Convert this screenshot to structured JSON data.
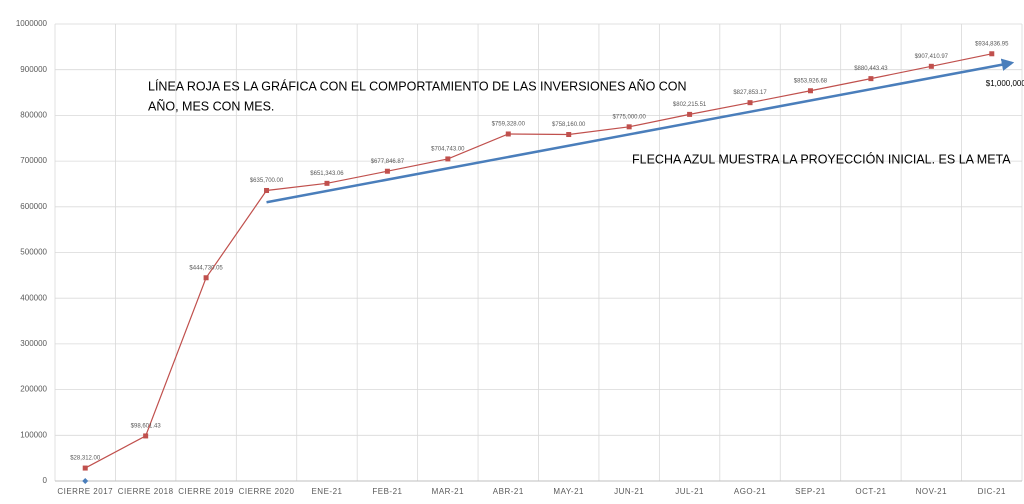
{
  "chart_data": {
    "type": "line",
    "categories": [
      "CIERRE 2017",
      "CIERRE 2018",
      "CIERRE 2019",
      "CIERRE 2020",
      "ENE-21",
      "FEB-21",
      "MAR-21",
      "ABR-21",
      "MAY-21",
      "JUN-21",
      "JUL-21",
      "AGO-21",
      "SEP-21",
      "OCT-21",
      "NOV-21",
      "DIC-21"
    ],
    "series": [
      {
        "color": "#c0504d",
        "marker": "square",
        "values": [
          28312,
          98601.43,
          444730.05,
          635700,
          651343.06,
          677846.87,
          704743,
          759328,
          758160,
          775000,
          802215.51,
          827853.17,
          853926.68,
          880443.43,
          907410.97,
          934836.95
        ],
        "value_labels": [
          "$28,312.00",
          "$98,601.43",
          "$444,730.05",
          "$635,700.00",
          "$651,343.06",
          "$677,846.87",
          "$704,743.00",
          "$759,328.00",
          "$758,160.00",
          "$775,000.00",
          "$802,215.51",
          "$827,853.17",
          "$853,926.68",
          "$880,443.43",
          "$907,410.97",
          "$934,836.95"
        ]
      },
      {
        "color": "#4a7ebb",
        "marker": "diamond",
        "values": [
          0,
          null,
          null,
          null,
          null,
          null,
          null,
          null,
          null,
          null,
          null,
          null,
          null,
          null,
          null,
          null
        ]
      }
    ],
    "arrow": {
      "color": "#4a7ebb",
      "start_index": 3,
      "start_value": 610000,
      "end_index": 15,
      "end_value": 915000,
      "label": "$1,000,000"
    },
    "annotations": [
      {
        "lines": [
          "LÍNEA ROJA ES LA GRÁFICA CON EL COMPORTAMIENTO DE LAS INVERSIONES AÑO CON",
          "AÑO, MES CON MES."
        ]
      },
      {
        "lines": [
          "FLECHA AZUL MUESTRA LA PROYECCIÓN INICIAL. ES LA META"
        ]
      }
    ],
    "ylim": [
      0,
      1000000
    ],
    "yticks": [
      0,
      100000,
      200000,
      300000,
      400000,
      500000,
      600000,
      700000,
      800000,
      900000,
      1000000
    ],
    "grid": true
  }
}
